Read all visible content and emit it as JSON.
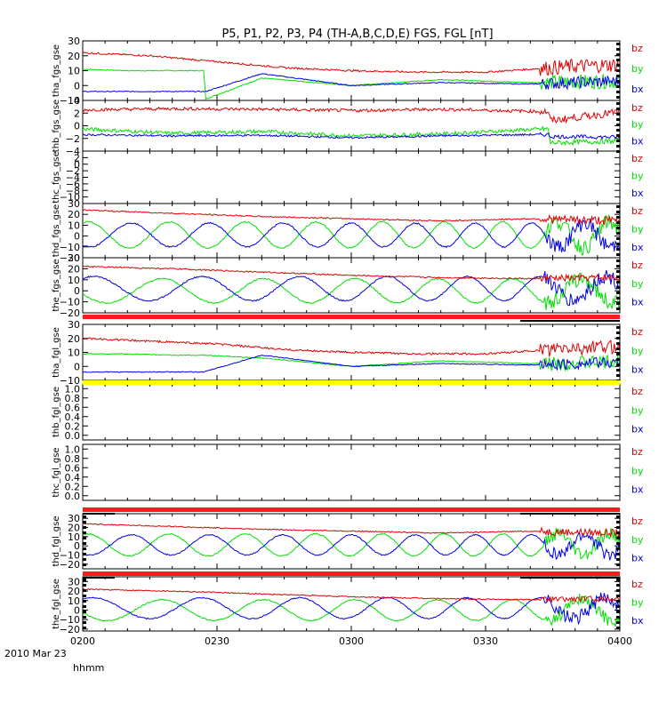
{
  "title": "P5, P1, P2, P3, P4 (TH-A,B,C,D,E) FGS, FGL [nT]",
  "colors": {
    "bx": "#0000e6",
    "by": "#00e000",
    "bz": "#e00000",
    "bar_red": "#ff1a1a",
    "bar_yellow": "#ffff00"
  },
  "x_axis": {
    "ticks": [
      "0200",
      "0230",
      "0300",
      "0330",
      "0400"
    ],
    "left_label": "hhmm",
    "date_label": "2010 Mar 23"
  },
  "legend_labels": {
    "bz": "bz",
    "by": "by",
    "bx": "bx"
  },
  "chart_data": [
    {
      "type": "line",
      "ylabel": "tha_fgs_gse",
      "ylim": [
        -10,
        30
      ],
      "yticks": [
        "30",
        "20",
        "10",
        "0",
        "−10"
      ],
      "series": [
        {
          "name": "bz",
          "color": "bz",
          "x": [
            0,
            15,
            30,
            45,
            60,
            75,
            90,
            105,
            110,
            120
          ],
          "y": [
            22,
            20,
            16,
            12,
            10,
            9,
            9,
            12,
            13,
            14
          ],
          "noise": 0.6,
          "noise_late": 5
        },
        {
          "name": "by",
          "color": "by",
          "x": [
            0,
            10,
            20,
            27,
            27.5,
            40,
            60,
            80,
            100,
            120
          ],
          "y": [
            11,
            10,
            10,
            10,
            -9,
            5,
            0,
            4,
            2,
            3
          ],
          "noise": 0.3,
          "noise_late": 5
        },
        {
          "name": "bx",
          "color": "bx",
          "x": [
            0,
            10,
            20,
            27,
            27.5,
            40,
            60,
            80,
            100,
            120
          ],
          "y": [
            -4,
            -4,
            -4,
            -4,
            -4,
            8,
            0,
            2,
            1,
            3
          ],
          "noise": 0.3,
          "noise_late": 4
        }
      ]
    },
    {
      "type": "line",
      "ylabel": "thb_fgs_gse",
      "ylim": [
        -4,
        4
      ],
      "yticks": [
        "4",
        "2",
        "0",
        "−2",
        "−4"
      ],
      "series": [
        {
          "name": "bz",
          "color": "bz",
          "x": [
            0,
            20,
            40,
            60,
            80,
            100,
            104,
            104.5,
            120
          ],
          "y": [
            2.5,
            2.7,
            2.6,
            2.4,
            2.6,
            2.3,
            2.2,
            0.8,
            2.2
          ],
          "noise": 0.25,
          "noise_late": 0.6
        },
        {
          "name": "by",
          "color": "by",
          "x": [
            0,
            20,
            40,
            60,
            80,
            100,
            104,
            104.5,
            120
          ],
          "y": [
            -0.5,
            -1.2,
            -0.9,
            -1.6,
            -1.3,
            -0.6,
            -0.5,
            -2.7,
            -2.4
          ],
          "noise": 0.3,
          "noise_late": 0.4
        },
        {
          "name": "bx",
          "color": "bx",
          "x": [
            0,
            20,
            40,
            60,
            80,
            100,
            104,
            104.5,
            120
          ],
          "y": [
            -1.4,
            -1.6,
            -1.5,
            -1.9,
            -1.6,
            -1.4,
            -1.4,
            -1.7,
            -1.8
          ],
          "noise": 0.15,
          "noise_late": 0.3
        }
      ]
    },
    {
      "type": "line",
      "ylabel": "thc_fgs_gse",
      "ylim": [
        -12,
        4
      ],
      "yticks": [
        "2",
        "0",
        "−2",
        "−4",
        "−6",
        "−8",
        "−10"
      ],
      "series": []
    },
    {
      "type": "line",
      "ylabel": "thd_fgs_gse",
      "ylim": [
        -20,
        30
      ],
      "yticks": [
        "30",
        "20",
        "10",
        "0",
        "−10",
        "−20"
      ],
      "series": [
        {
          "name": "bz",
          "color": "bz",
          "x": [
            0,
            20,
            40,
            60,
            80,
            100,
            120
          ],
          "y": [
            24,
            21,
            18,
            16,
            14,
            16,
            14
          ],
          "noise": 0.6,
          "noise_late": 4
        },
        {
          "name": "by",
          "color": "by",
          "wave": {
            "mean": 1,
            "amp": 12,
            "period0": 19,
            "period1": 10,
            "phase": 1.2
          }
        },
        {
          "name": "bx",
          "color": "bx",
          "wave": {
            "mean": 1,
            "amp": 11,
            "period0": 19,
            "period1": 10,
            "phase": 4.2
          }
        }
      ]
    },
    {
      "type": "line",
      "ylabel": "the_fgs_gse",
      "ylim": [
        -20,
        30
      ],
      "yticks": [
        "30",
        "20",
        "10",
        "0",
        "−10",
        "−20"
      ],
      "series": [
        {
          "name": "bz",
          "color": "bz",
          "x": [
            0,
            20,
            40,
            60,
            80,
            100,
            120
          ],
          "y": [
            22,
            20,
            17,
            14,
            12,
            11,
            12
          ],
          "noise": 0.6,
          "noise_late": 3
        },
        {
          "name": "by",
          "color": "by",
          "wave": {
            "mean": 0,
            "amp": 11,
            "period0": 26,
            "period1": 12,
            "phase": 3.4
          }
        },
        {
          "name": "bx",
          "color": "bx",
          "wave": {
            "mean": 2,
            "amp": 11,
            "period0": 26,
            "period1": 12,
            "phase": 1.0
          }
        }
      ]
    },
    {
      "type": "line",
      "ylabel": "tha_fgl_gse",
      "ylim": [
        -10,
        30
      ],
      "yticks": [
        "30",
        "20",
        "10",
        "0",
        "−10"
      ],
      "series": [
        {
          "name": "bz",
          "color": "bz",
          "x": [
            0,
            15,
            30,
            45,
            60,
            75,
            90,
            105,
            110,
            120
          ],
          "y": [
            20,
            18,
            16,
            12,
            10,
            9,
            9,
            12,
            13,
            14
          ],
          "noise": 0.7,
          "noise_late": 5
        },
        {
          "name": "by",
          "color": "by",
          "x": [
            0,
            10,
            20,
            27,
            40,
            60,
            80,
            100,
            120
          ],
          "y": [
            9,
            9,
            8,
            8,
            6,
            0,
            4,
            2,
            3
          ],
          "noise": 0.3,
          "noise_late": 5
        },
        {
          "name": "bx",
          "color": "bx",
          "x": [
            0,
            10,
            20,
            27,
            40,
            60,
            80,
            100,
            120
          ],
          "y": [
            -4,
            -4,
            -4,
            -4,
            8,
            0,
            2,
            1,
            3
          ],
          "noise": 0.3,
          "noise_late": 4
        }
      ]
    },
    {
      "type": "line",
      "ylabel": "thb_fgl_gse",
      "ylim": [
        -0.1,
        1.1
      ],
      "yticks": [
        "1.0",
        "0.8",
        "0.6",
        "0.4",
        "0.2",
        "0.0"
      ],
      "series": []
    },
    {
      "type": "line",
      "ylabel": "thc_fgl_gse",
      "ylim": [
        -0.1,
        1.1
      ],
      "yticks": [
        "1.0",
        "0.8",
        "0.6",
        "0.4",
        "0.2",
        "0.0"
      ],
      "series": []
    },
    {
      "type": "line",
      "ylabel": "thd_fgl_gse",
      "ylim": [
        -25,
        35
      ],
      "yticks": [
        "30",
        "20",
        "10",
        "0",
        "−10",
        "−20"
      ],
      "series": [
        {
          "name": "bz",
          "color": "bz",
          "x": [
            0,
            20,
            40,
            60,
            80,
            100,
            120
          ],
          "y": [
            24,
            21,
            18,
            16,
            14,
            16,
            14
          ],
          "noise": 0.6,
          "noise_late": 4
        },
        {
          "name": "by",
          "color": "by",
          "wave": {
            "mean": 1,
            "amp": 12,
            "period0": 19,
            "period1": 10,
            "phase": 1.2
          }
        },
        {
          "name": "bx",
          "color": "bx",
          "wave": {
            "mean": 1,
            "amp": 11,
            "period0": 19,
            "period1": 10,
            "phase": 4.2
          }
        }
      ]
    },
    {
      "type": "line",
      "ylabel": "the_fgl_gse",
      "ylim": [
        -22,
        35
      ],
      "yticks": [
        "30",
        "20",
        "10",
        "0",
        "−10",
        "−20"
      ],
      "series": [
        {
          "name": "bz",
          "color": "bz",
          "x": [
            0,
            20,
            40,
            60,
            80,
            100,
            120
          ],
          "y": [
            22,
            20,
            17,
            14,
            12,
            11,
            12
          ],
          "noise": 0.6,
          "noise_late": 3
        },
        {
          "name": "by",
          "color": "by",
          "wave": {
            "mean": 0,
            "amp": 11,
            "period0": 26,
            "period1": 12,
            "phase": 3.4
          }
        },
        {
          "name": "bx",
          "color": "bx",
          "wave": {
            "mean": 2,
            "amp": 11,
            "period0": 26,
            "period1": 12,
            "phase": 1.0
          }
        }
      ]
    }
  ]
}
